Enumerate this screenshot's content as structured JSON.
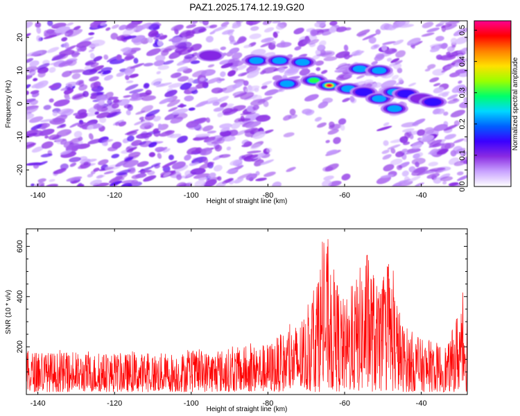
{
  "chart_data": [
    {
      "type": "heatmap",
      "title": "PAZ1.2025.174.12.19.G20",
      "xlabel": "Height of straight line (km)",
      "ylabel": "Frequency (Hz)",
      "xlim": [
        -143,
        -28
      ],
      "ylim": [
        -25,
        25
      ],
      "xticks": [
        -140,
        -120,
        -100,
        -80,
        -60,
        -40
      ],
      "yticks": [
        -20,
        -10,
        0,
        10,
        20
      ],
      "colorbar": {
        "label": "Normalized spectral amplitude",
        "range": [
          0.0,
          0.53
        ],
        "ticks": [
          "0.0",
          "0.1",
          "0.2",
          "0.3",
          "0.4",
          "0.5"
        ],
        "colormap": [
          "#ffffff",
          "#c9a3ff",
          "#8a2be2",
          "#3a00ff",
          "#0060ff",
          "#00d8ff",
          "#00ff6a",
          "#9aff00",
          "#ffe000",
          "#ff8000",
          "#ff0000",
          "#ff0090"
        ]
      },
      "features": [
        {
          "x": -83,
          "y": 13,
          "v": 0.22
        },
        {
          "x": -77,
          "y": 13,
          "v": 0.26
        },
        {
          "x": -71,
          "y": 12.5,
          "v": 0.23
        },
        {
          "x": -95,
          "y": 14.5,
          "v": 0.12
        },
        {
          "x": -75,
          "y": 6,
          "v": 0.2
        },
        {
          "x": -68,
          "y": 7,
          "v": 0.33
        },
        {
          "x": -64,
          "y": 5.5,
          "v": 0.5
        },
        {
          "x": -59,
          "y": 4.5,
          "v": 0.2
        },
        {
          "x": -56,
          "y": 10.5,
          "v": 0.2
        },
        {
          "x": -51,
          "y": 10,
          "v": 0.24
        },
        {
          "x": -55,
          "y": 3.5,
          "v": 0.15
        },
        {
          "x": -51,
          "y": 1.5,
          "v": 0.22
        },
        {
          "x": -47,
          "y": 3.5,
          "v": 0.22
        },
        {
          "x": -44,
          "y": 3,
          "v": 0.15
        },
        {
          "x": -47,
          "y": -1.5,
          "v": 0.22
        },
        {
          "x": -40,
          "y": 1.5,
          "v": 0.1
        },
        {
          "x": -37,
          "y": 0.5,
          "v": 0.16
        }
      ]
    },
    {
      "type": "line",
      "xlabel": "Height of straight line (km)",
      "ylabel": "SNR (10 * v/v)",
      "xlim": [
        -143,
        -28
      ],
      "ylim": [
        10,
        670
      ],
      "xticks": [
        -140,
        -120,
        -100,
        -80,
        -60,
        -40
      ],
      "yticks": [
        200,
        400,
        600
      ],
      "color": "#ff0000",
      "envelope": [
        {
          "x": -143,
          "y": 185
        },
        {
          "x": -130,
          "y": 175
        },
        {
          "x": -110,
          "y": 175
        },
        {
          "x": -95,
          "y": 185
        },
        {
          "x": -80,
          "y": 215
        },
        {
          "x": -74,
          "y": 280
        },
        {
          "x": -70,
          "y": 320
        },
        {
          "x": -68,
          "y": 460
        },
        {
          "x": -65,
          "y": 640
        },
        {
          "x": -63,
          "y": 520
        },
        {
          "x": -60,
          "y": 380
        },
        {
          "x": -57,
          "y": 480
        },
        {
          "x": -54,
          "y": 600
        },
        {
          "x": -51,
          "y": 420
        },
        {
          "x": -48,
          "y": 540
        },
        {
          "x": -45,
          "y": 300
        },
        {
          "x": -40,
          "y": 230
        },
        {
          "x": -33,
          "y": 210
        },
        {
          "x": -30,
          "y": 380
        },
        {
          "x": -28,
          "y": 420
        }
      ]
    }
  ]
}
